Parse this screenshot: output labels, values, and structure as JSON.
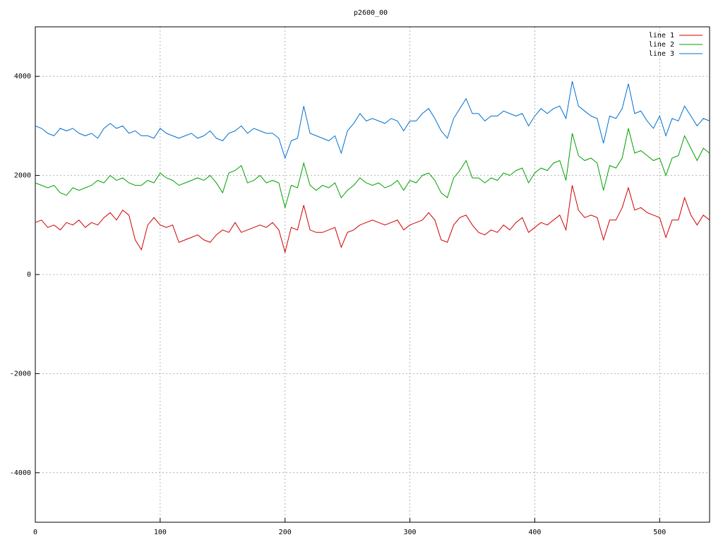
{
  "chart_data": {
    "type": "line",
    "title": "p2600_00",
    "x": [
      0,
      5,
      10,
      15,
      20,
      25,
      30,
      35,
      40,
      45,
      50,
      55,
      60,
      65,
      70,
      75,
      80,
      85,
      90,
      95,
      100,
      105,
      110,
      115,
      120,
      125,
      130,
      135,
      140,
      145,
      150,
      155,
      160,
      165,
      170,
      175,
      180,
      185,
      190,
      195,
      200,
      205,
      210,
      215,
      220,
      225,
      230,
      235,
      240,
      245,
      250,
      255,
      260,
      265,
      270,
      275,
      280,
      285,
      290,
      295,
      300,
      305,
      310,
      315,
      320,
      325,
      330,
      335,
      340,
      345,
      350,
      355,
      360,
      365,
      370,
      375,
      380,
      385,
      390,
      395,
      400,
      405,
      410,
      415,
      420,
      425,
      430,
      435,
      440,
      445,
      450,
      455,
      460,
      465,
      470,
      475,
      480,
      485,
      490,
      495,
      500,
      505,
      510,
      515,
      520,
      525,
      530,
      535,
      540
    ],
    "series": [
      {
        "name": "line 1",
        "color": "#d00000",
        "values": [
          1050,
          1100,
          950,
          1000,
          900,
          1050,
          1000,
          1100,
          950,
          1050,
          1000,
          1150,
          1250,
          1100,
          1300,
          1200,
          700,
          500,
          1000,
          1150,
          1000,
          950,
          1000,
          650,
          700,
          750,
          800,
          700,
          650,
          800,
          900,
          850,
          1050,
          850,
          900,
          950,
          1000,
          950,
          1050,
          900,
          450,
          950,
          900,
          1400,
          900,
          850,
          850,
          900,
          950,
          550,
          850,
          900,
          1000,
          1050,
          1100,
          1050,
          1000,
          1050,
          1100,
          900,
          1000,
          1050,
          1100,
          1250,
          1100,
          700,
          650,
          1000,
          1150,
          1200,
          1000,
          850,
          800,
          900,
          850,
          1000,
          900,
          1050,
          1150,
          850,
          950,
          1050,
          1000,
          1100,
          1200,
          900,
          1800,
          1300,
          1150,
          1200,
          1150,
          700,
          1100,
          1100,
          1350,
          1750,
          1300,
          1350,
          1250,
          1200,
          1150,
          750,
          1100,
          1100,
          1550,
          1200,
          1000,
          1200,
          1100
        ]
      },
      {
        "name": "line 2",
        "color": "#00a000",
        "values": [
          1850,
          1800,
          1750,
          1800,
          1650,
          1600,
          1750,
          1700,
          1750,
          1800,
          1900,
          1850,
          2000,
          1900,
          1950,
          1850,
          1800,
          1800,
          1900,
          1850,
          2050,
          1950,
          1900,
          1800,
          1850,
          1900,
          1950,
          1900,
          2000,
          1850,
          1650,
          2050,
          2100,
          2200,
          1850,
          1900,
          2000,
          1850,
          1900,
          1850,
          1350,
          1800,
          1750,
          2250,
          1800,
          1700,
          1800,
          1750,
          1850,
          1550,
          1700,
          1800,
          1950,
          1850,
          1800,
          1850,
          1750,
          1800,
          1900,
          1700,
          1900,
          1850,
          2000,
          2050,
          1900,
          1650,
          1550,
          1950,
          2100,
          2300,
          1950,
          1950,
          1850,
          1950,
          1900,
          2050,
          2000,
          2100,
          2150,
          1850,
          2050,
          2150,
          2100,
          2250,
          2300,
          1900,
          2850,
          2400,
          2300,
          2350,
          2250,
          1700,
          2200,
          2150,
          2350,
          2950,
          2450,
          2500,
          2400,
          2300,
          2350,
          2000,
          2350,
          2400,
          2800,
          2550,
          2300,
          2550,
          2450
        ]
      },
      {
        "name": "line 3",
        "color": "#0070d0",
        "values": [
          3000,
          2950,
          2850,
          2800,
          2950,
          2900,
          2950,
          2850,
          2800,
          2850,
          2750,
          2950,
          3050,
          2950,
          3000,
          2850,
          2900,
          2800,
          2800,
          2750,
          2950,
          2850,
          2800,
          2750,
          2800,
          2850,
          2750,
          2800,
          2900,
          2750,
          2700,
          2850,
          2900,
          3000,
          2850,
          2950,
          2900,
          2850,
          2850,
          2750,
          2350,
          2700,
          2750,
          3400,
          2850,
          2800,
          2750,
          2700,
          2800,
          2450,
          2900,
          3050,
          3250,
          3100,
          3150,
          3100,
          3050,
          3150,
          3100,
          2900,
          3100,
          3100,
          3250,
          3350,
          3150,
          2900,
          2750,
          3150,
          3350,
          3550,
          3250,
          3250,
          3100,
          3200,
          3200,
          3300,
          3250,
          3200,
          3250,
          3000,
          3200,
          3350,
          3250,
          3350,
          3400,
          3150,
          3900,
          3400,
          3300,
          3200,
          3150,
          2650,
          3200,
          3150,
          3350,
          3850,
          3250,
          3300,
          3100,
          2950,
          3200,
          2800,
          3150,
          3100,
          3400,
          3200,
          3000,
          3150,
          3100
        ]
      }
    ],
    "xlim": [
      0,
      540
    ],
    "ylim": [
      -5000,
      5000
    ],
    "xticks": [
      0,
      100,
      200,
      300,
      400,
      500
    ],
    "yticks": [
      -4000,
      -2000,
      0,
      2000,
      4000
    ],
    "grid": true,
    "legend": "top-right"
  }
}
